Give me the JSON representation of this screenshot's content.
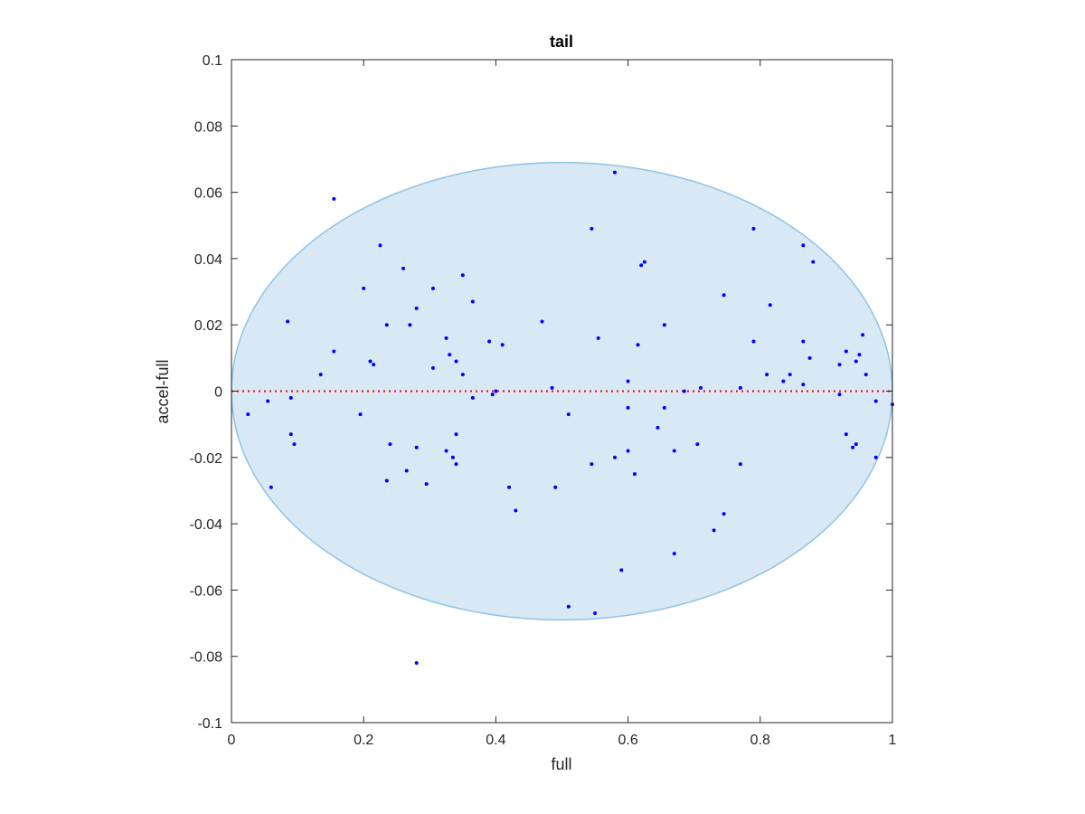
{
  "chart_data": {
    "type": "scatter",
    "title": "tail",
    "xlabel": "full",
    "ylabel": "accel-full",
    "xlim": [
      0,
      1
    ],
    "ylim": [
      -0.1,
      0.1
    ],
    "x_ticks": [
      0,
      0.2,
      0.4,
      0.6,
      0.8,
      1
    ],
    "x_tick_labels": [
      "0",
      "0.2",
      "0.4",
      "0.6",
      "0.8",
      "1"
    ],
    "y_ticks": [
      0.1,
      0.08,
      0.06,
      0.04,
      0.02,
      0,
      -0.02,
      -0.04,
      -0.06,
      -0.08,
      -0.1
    ],
    "y_tick_labels": [
      "0.1",
      "0.08",
      "0.06",
      "0.04",
      "0.02",
      "0",
      "-0.02",
      "-0.04",
      "-0.06",
      "-0.08",
      "-0.1"
    ],
    "grid": false,
    "reference_line": {
      "y": 0,
      "style": "dotted",
      "color": "#ff0000"
    },
    "ellipse": {
      "cx": 0.5,
      "cy": 0,
      "rx": 0.5,
      "ry": 0.069,
      "fill": "#d9e8f5",
      "stroke": "#8ec3e4"
    },
    "point_color": "#0000ff",
    "points": [
      [
        0.155,
        0.058
      ],
      [
        0.58,
        0.066
      ],
      [
        0.545,
        0.049
      ],
      [
        0.225,
        0.044
      ],
      [
        0.79,
        0.049
      ],
      [
        0.865,
        0.044
      ],
      [
        0.88,
        0.039
      ],
      [
        0.26,
        0.037
      ],
      [
        0.625,
        0.039
      ],
      [
        0.62,
        0.038
      ],
      [
        0.35,
        0.035
      ],
      [
        0.2,
        0.031
      ],
      [
        0.305,
        0.031
      ],
      [
        0.745,
        0.029
      ],
      [
        0.365,
        0.027
      ],
      [
        0.815,
        0.026
      ],
      [
        0.28,
        0.025
      ],
      [
        0.085,
        0.021
      ],
      [
        0.47,
        0.021
      ],
      [
        0.235,
        0.02
      ],
      [
        0.27,
        0.02
      ],
      [
        0.655,
        0.02
      ],
      [
        0.555,
        0.016
      ],
      [
        0.325,
        0.016
      ],
      [
        0.865,
        0.015
      ],
      [
        0.955,
        0.017
      ],
      [
        0.39,
        0.015
      ],
      [
        0.79,
        0.015
      ],
      [
        0.41,
        0.014
      ],
      [
        0.615,
        0.014
      ],
      [
        0.93,
        0.012
      ],
      [
        0.155,
        0.012
      ],
      [
        0.33,
        0.011
      ],
      [
        0.95,
        0.011
      ],
      [
        0.875,
        0.01
      ],
      [
        0.34,
        0.009
      ],
      [
        0.21,
        0.009
      ],
      [
        0.945,
        0.009
      ],
      [
        0.215,
        0.008
      ],
      [
        0.92,
        0.008
      ],
      [
        0.305,
        0.007
      ],
      [
        0.81,
        0.005
      ],
      [
        0.135,
        0.005
      ],
      [
        0.35,
        0.005
      ],
      [
        0.845,
        0.005
      ],
      [
        0.96,
        0.005
      ],
      [
        0.6,
        0.003
      ],
      [
        0.835,
        0.003
      ],
      [
        0.865,
        0.002
      ],
      [
        0.77,
        0.001
      ],
      [
        0.71,
        0.001
      ],
      [
        0.485,
        0.001
      ],
      [
        0.685,
        0.0
      ],
      [
        0.395,
        -0.001
      ],
      [
        0.4,
        0.0
      ],
      [
        0.92,
        -0.001
      ],
      [
        0.365,
        -0.002
      ],
      [
        0.975,
        -0.003
      ],
      [
        0.055,
        -0.003
      ],
      [
        0.09,
        -0.002
      ],
      [
        1.0,
        -0.004
      ],
      [
        0.6,
        -0.005
      ],
      [
        0.655,
        -0.005
      ],
      [
        0.025,
        -0.007
      ],
      [
        0.195,
        -0.007
      ],
      [
        0.51,
        -0.007
      ],
      [
        0.645,
        -0.011
      ],
      [
        0.34,
        -0.013
      ],
      [
        0.09,
        -0.013
      ],
      [
        0.93,
        -0.013
      ],
      [
        0.095,
        -0.016
      ],
      [
        0.24,
        -0.016
      ],
      [
        0.28,
        -0.017
      ],
      [
        0.945,
        -0.016
      ],
      [
        0.705,
        -0.016
      ],
      [
        0.94,
        -0.017
      ],
      [
        0.67,
        -0.018
      ],
      [
        0.6,
        -0.018
      ],
      [
        0.325,
        -0.018
      ],
      [
        0.335,
        -0.02
      ],
      [
        0.58,
        -0.02
      ],
      [
        0.975,
        -0.02
      ],
      [
        0.34,
        -0.022
      ],
      [
        0.545,
        -0.022
      ],
      [
        0.77,
        -0.022
      ],
      [
        0.265,
        -0.024
      ],
      [
        0.61,
        -0.025
      ],
      [
        0.235,
        -0.027
      ],
      [
        0.295,
        -0.028
      ],
      [
        0.06,
        -0.029
      ],
      [
        0.42,
        -0.029
      ],
      [
        0.49,
        -0.029
      ],
      [
        0.43,
        -0.036
      ],
      [
        0.745,
        -0.037
      ],
      [
        0.73,
        -0.042
      ],
      [
        0.67,
        -0.049
      ],
      [
        0.59,
        -0.054
      ],
      [
        0.51,
        -0.065
      ],
      [
        0.55,
        -0.067
      ],
      [
        0.28,
        -0.082
      ]
    ]
  }
}
